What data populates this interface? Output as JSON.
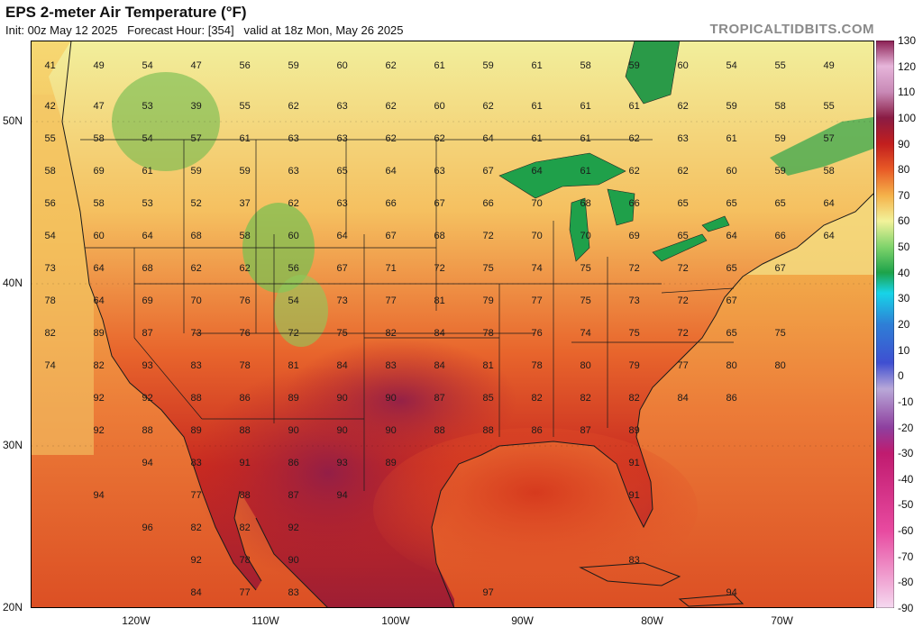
{
  "header": {
    "title": "EPS 2-meter Air Temperature (°F)",
    "subtitle": "Init: 00z May 12 2025   Forecast Hour: [354]   valid at 18z Mon, May 26 2025",
    "brand": "TROPICALTIDBITS.COM"
  },
  "map": {
    "lon_range": [
      -128,
      -63
    ],
    "lat_range": [
      20,
      55
    ],
    "lat_ticks": [
      "50N",
      "40N",
      "30N",
      "20N"
    ],
    "lat_tick_values": [
      50,
      40,
      30,
      20
    ],
    "lon_ticks": [
      "120W",
      "110W",
      "100W",
      "90W",
      "80W",
      "70W"
    ],
    "lon_tick_values": [
      -120,
      -110,
      -100,
      -90,
      -80,
      -70
    ],
    "label_grid": {
      "lat_rows": [
        53.5,
        51,
        49,
        47,
        45,
        43,
        41,
        39,
        37,
        35,
        33,
        31,
        29,
        27,
        25,
        23,
        21
      ],
      "lon_start": -126.5,
      "lon_step": 5,
      "rows": [
        [
          "41",
          "49",
          "54",
          "47",
          "56",
          "59",
          "60",
          "62",
          "61",
          "59",
          "61",
          "58",
          "59",
          "60",
          "54",
          "55",
          "49"
        ],
        [
          "42",
          "47",
          "53",
          "39",
          "55",
          "62",
          "63",
          "62",
          "60",
          "62",
          "61",
          "61",
          "61",
          "62",
          "59",
          "58",
          "55"
        ],
        [
          "55",
          "58",
          "54",
          "57",
          "61",
          "63",
          "63",
          "62",
          "62",
          "64",
          "61",
          "61",
          "62",
          "63",
          "61",
          "59",
          "57"
        ],
        [
          "58",
          "69",
          "61",
          "59",
          "59",
          "63",
          "65",
          "64",
          "63",
          "67",
          "64",
          "61",
          "62",
          "62",
          "60",
          "59",
          "58"
        ],
        [
          "56",
          "58",
          "53",
          "52",
          "37",
          "62",
          "63",
          "66",
          "67",
          "66",
          "70",
          "68",
          "66",
          "65",
          "65",
          "65",
          "64"
        ],
        [
          "54",
          "60",
          "64",
          "68",
          "58",
          "60",
          "64",
          "67",
          "68",
          "72",
          "70",
          "70",
          "69",
          "65",
          "64",
          "66",
          "64"
        ],
        [
          "73",
          "64",
          "68",
          "62",
          "62",
          "56",
          "67",
          "71",
          "72",
          "75",
          "74",
          "75",
          "72",
          "72",
          "65",
          "67",
          ""
        ],
        [
          "78",
          "64",
          "69",
          "70",
          "76",
          "54",
          "73",
          "77",
          "81",
          "79",
          "77",
          "75",
          "73",
          "72",
          "67",
          "",
          ""
        ],
        [
          "82",
          "89",
          "87",
          "73",
          "76",
          "72",
          "75",
          "82",
          "84",
          "78",
          "76",
          "74",
          "75",
          "72",
          "65",
          "75",
          ""
        ],
        [
          "74",
          "82",
          "93",
          "83",
          "78",
          "81",
          "84",
          "83",
          "84",
          "81",
          "78",
          "80",
          "79",
          "77",
          "80",
          "80",
          ""
        ],
        [
          "",
          "92",
          "92",
          "88",
          "86",
          "89",
          "90",
          "90",
          "87",
          "85",
          "82",
          "82",
          "82",
          "84",
          "86",
          "",
          ""
        ],
        [
          "",
          "92",
          "88",
          "89",
          "88",
          "90",
          "90",
          "90",
          "88",
          "88",
          "86",
          "87",
          "89",
          "",
          "",
          "",
          ""
        ],
        [
          "",
          "",
          "94",
          "83",
          "91",
          "86",
          "93",
          "89",
          "",
          "",
          "",
          "",
          "91",
          "",
          "",
          "",
          ""
        ],
        [
          "",
          "94",
          "",
          "77",
          "88",
          "87",
          "94",
          "",
          "",
          "",
          "",
          "",
          "91",
          "",
          "",
          "",
          ""
        ],
        [
          "",
          "",
          "96",
          "82",
          "82",
          "92",
          "",
          "",
          "",
          "",
          "",
          "",
          "",
          "",
          "",
          "",
          ""
        ],
        [
          "",
          "",
          "",
          "92",
          "78",
          "90",
          "",
          "",
          "",
          "",
          "",
          "",
          "83",
          "",
          "",
          "",
          ""
        ],
        [
          "",
          "",
          "",
          "84",
          "77",
          "83",
          "",
          "",
          "",
          "97",
          "",
          "",
          "",
          "",
          "94",
          "",
          ""
        ]
      ]
    },
    "land_note": ""
  },
  "colorbar": {
    "ticks": [
      "130",
      "120",
      "110",
      "100",
      "90",
      "80",
      "70",
      "60",
      "50",
      "40",
      "30",
      "20",
      "10",
      "0",
      "-10",
      "-20",
      "-30",
      "-40",
      "-50",
      "-60",
      "-70",
      "-80",
      "-90"
    ],
    "values": [
      130,
      120,
      110,
      100,
      90,
      80,
      70,
      60,
      50,
      40,
      30,
      20,
      10,
      0,
      -10,
      -20,
      -30,
      -40,
      -50,
      -60,
      -70,
      -80,
      -90
    ],
    "stops": [
      {
        "v": -90,
        "c": "#f5d9f0"
      },
      {
        "v": -60,
        "c": "#e84aa0"
      },
      {
        "v": -30,
        "c": "#c01b6f"
      },
      {
        "v": -20,
        "c": "#8e3f9f"
      },
      {
        "v": -5,
        "c": "#b9a8d8"
      },
      {
        "v": 5,
        "c": "#3f4fd1"
      },
      {
        "v": 20,
        "c": "#2e7fd6"
      },
      {
        "v": 32,
        "c": "#17d4e8"
      },
      {
        "v": 40,
        "c": "#1da34a"
      },
      {
        "v": 50,
        "c": "#7fd36b"
      },
      {
        "v": 60,
        "c": "#f2f29a"
      },
      {
        "v": 70,
        "c": "#f5b24a"
      },
      {
        "v": 80,
        "c": "#e85a26"
      },
      {
        "v": 90,
        "c": "#c21e1e"
      },
      {
        "v": 100,
        "c": "#8a1c44"
      },
      {
        "v": 110,
        "c": "#c889b6"
      },
      {
        "v": 120,
        "c": "#e6b5da"
      },
      {
        "v": 130,
        "c": "#8b1e52"
      }
    ]
  }
}
